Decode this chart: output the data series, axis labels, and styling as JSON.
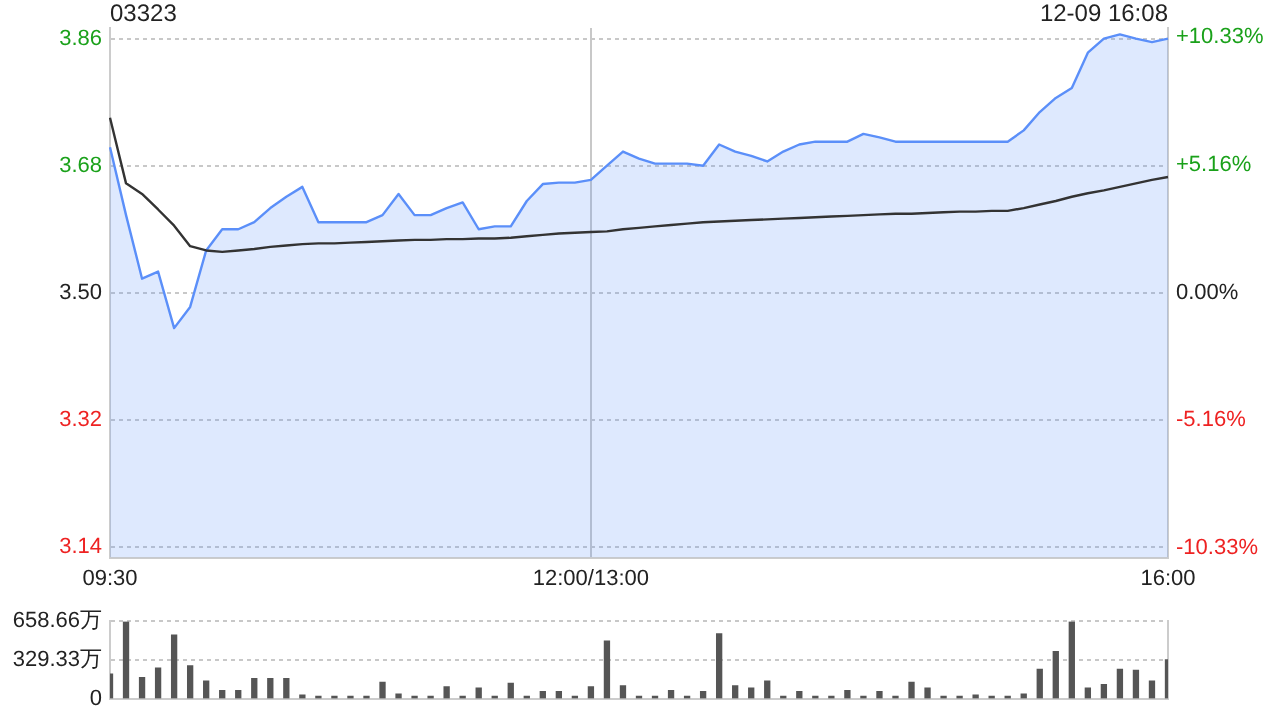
{
  "chart_data": [
    {
      "type": "line",
      "title": "03323",
      "subtitle": "12-09 16:08",
      "categories": [
        "09:30",
        null,
        null,
        null,
        null,
        null,
        null,
        null,
        null,
        null,
        null,
        null,
        null,
        null,
        null,
        null,
        null,
        null,
        null,
        null,
        null,
        null,
        null,
        null,
        null,
        null,
        null,
        null,
        null,
        null,
        "12:00/13:00",
        null,
        null,
        null,
        null,
        null,
        null,
        null,
        null,
        null,
        null,
        null,
        null,
        null,
        null,
        null,
        null,
        null,
        null,
        null,
        null,
        null,
        null,
        null,
        null,
        null,
        null,
        null,
        null,
        null,
        null,
        null,
        null,
        null,
        null,
        null,
        "16:00"
      ],
      "ylim": [
        3.125,
        3.875
      ],
      "yticks": [
        3.14,
        3.32,
        {
          "value": 3.5,
          "label": "3.50"
        },
        3.68,
        3.86
      ],
      "y2lim": [
        -10.71,
        10.71
      ],
      "y2ticks": [
        {
          "value": -10.33,
          "label": "-10.33%"
        },
        {
          "value": -5.16,
          "label": "-5.16%"
        },
        {
          "value": 0,
          "label": "0.00%"
        },
        {
          "value": 5.16,
          "label": "+5.16%"
        },
        {
          "value": 10.33,
          "label": "+10.33%"
        }
      ],
      "grid": true,
      "marker": "none",
      "series": [
        {
          "type": "area",
          "color": "#5b8ff9",
          "values": [
            3.706,
            3.61,
            3.52,
            3.53,
            3.45,
            3.48,
            3.56,
            3.59,
            3.59,
            3.6,
            3.62,
            3.636,
            3.65,
            3.6,
            3.6,
            3.6,
            3.6,
            3.61,
            3.64,
            3.61,
            3.61,
            3.62,
            3.628,
            3.59,
            3.594,
            3.594,
            3.63,
            3.654,
            3.656,
            3.656,
            3.66,
            3.68,
            3.7,
            3.69,
            3.683,
            3.683,
            3.683,
            3.68,
            3.71,
            3.7,
            3.694,
            3.686,
            3.7,
            3.71,
            3.714,
            3.714,
            3.714,
            3.725,
            3.72,
            3.714,
            3.714,
            3.714,
            3.714,
            3.714,
            3.714,
            3.714,
            3.714,
            3.73,
            3.756,
            3.776,
            3.79,
            3.84,
            3.86,
            3.866,
            3.86,
            3.855,
            3.86
          ]
        },
        {
          "type": "line",
          "color": "#333333",
          "values": [
            3.748,
            3.655,
            3.64,
            3.618,
            3.595,
            3.566,
            3.56,
            3.558,
            3.56,
            3.562,
            3.565,
            3.567,
            3.569,
            3.57,
            3.57,
            3.571,
            3.572,
            3.573,
            3.574,
            3.575,
            3.575,
            3.576,
            3.576,
            3.577,
            3.577,
            3.578,
            3.58,
            3.582,
            3.584,
            3.585,
            3.586,
            3.587,
            3.59,
            3.592,
            3.594,
            3.596,
            3.598,
            3.6,
            3.601,
            3.602,
            3.603,
            3.604,
            3.605,
            3.606,
            3.607,
            3.608,
            3.609,
            3.61,
            3.611,
            3.612,
            3.612,
            3.613,
            3.614,
            3.615,
            3.615,
            3.616,
            3.616,
            3.62,
            3.625,
            3.63,
            3.636,
            3.641,
            3.645,
            3.65,
            3.655,
            3.66,
            3.664
          ]
        }
      ]
    },
    {
      "type": "bar",
      "categories": [
        null,
        null,
        null,
        null,
        null,
        null,
        null,
        null,
        null,
        null,
        null,
        null,
        null,
        null,
        null,
        null,
        null,
        null,
        null,
        null,
        null,
        null,
        null,
        null,
        null,
        null,
        null,
        null,
        null,
        null,
        null,
        null,
        null,
        null,
        null,
        null,
        null,
        null,
        null,
        null,
        null,
        null,
        null,
        null,
        null,
        null,
        null,
        null,
        null,
        null,
        null,
        null,
        null,
        null,
        null,
        null,
        null,
        null,
        null,
        null,
        null,
        null,
        null,
        null,
        null,
        null,
        null
      ],
      "ylim": [
        0,
        658.66
      ],
      "yticks": [
        0,
        {
          "value": 329.33,
          "label": "329.33万"
        },
        {
          "value": 658.66,
          "label": "658.66万"
        }
      ],
      "tick_labels": "y",
      "grid": "y",
      "series": [
        {
          "color": "#555555",
          "values": [
            210,
            650,
            180,
            260,
            540,
            280,
            150,
            70,
            70,
            170,
            170,
            170,
            30,
            20,
            20,
            20,
            20,
            140,
            40,
            20,
            20,
            100,
            20,
            90,
            20,
            130,
            20,
            60,
            60,
            20,
            100,
            490,
            110,
            20,
            20,
            70,
            20,
            60,
            550,
            110,
            90,
            150,
            20,
            60,
            20,
            20,
            70,
            20,
            60,
            20,
            140,
            90,
            20,
            20,
            30,
            20,
            20,
            40,
            250,
            400,
            650,
            90,
            120,
            250,
            240,
            150,
            330
          ]
        }
      ]
    }
  ]
}
